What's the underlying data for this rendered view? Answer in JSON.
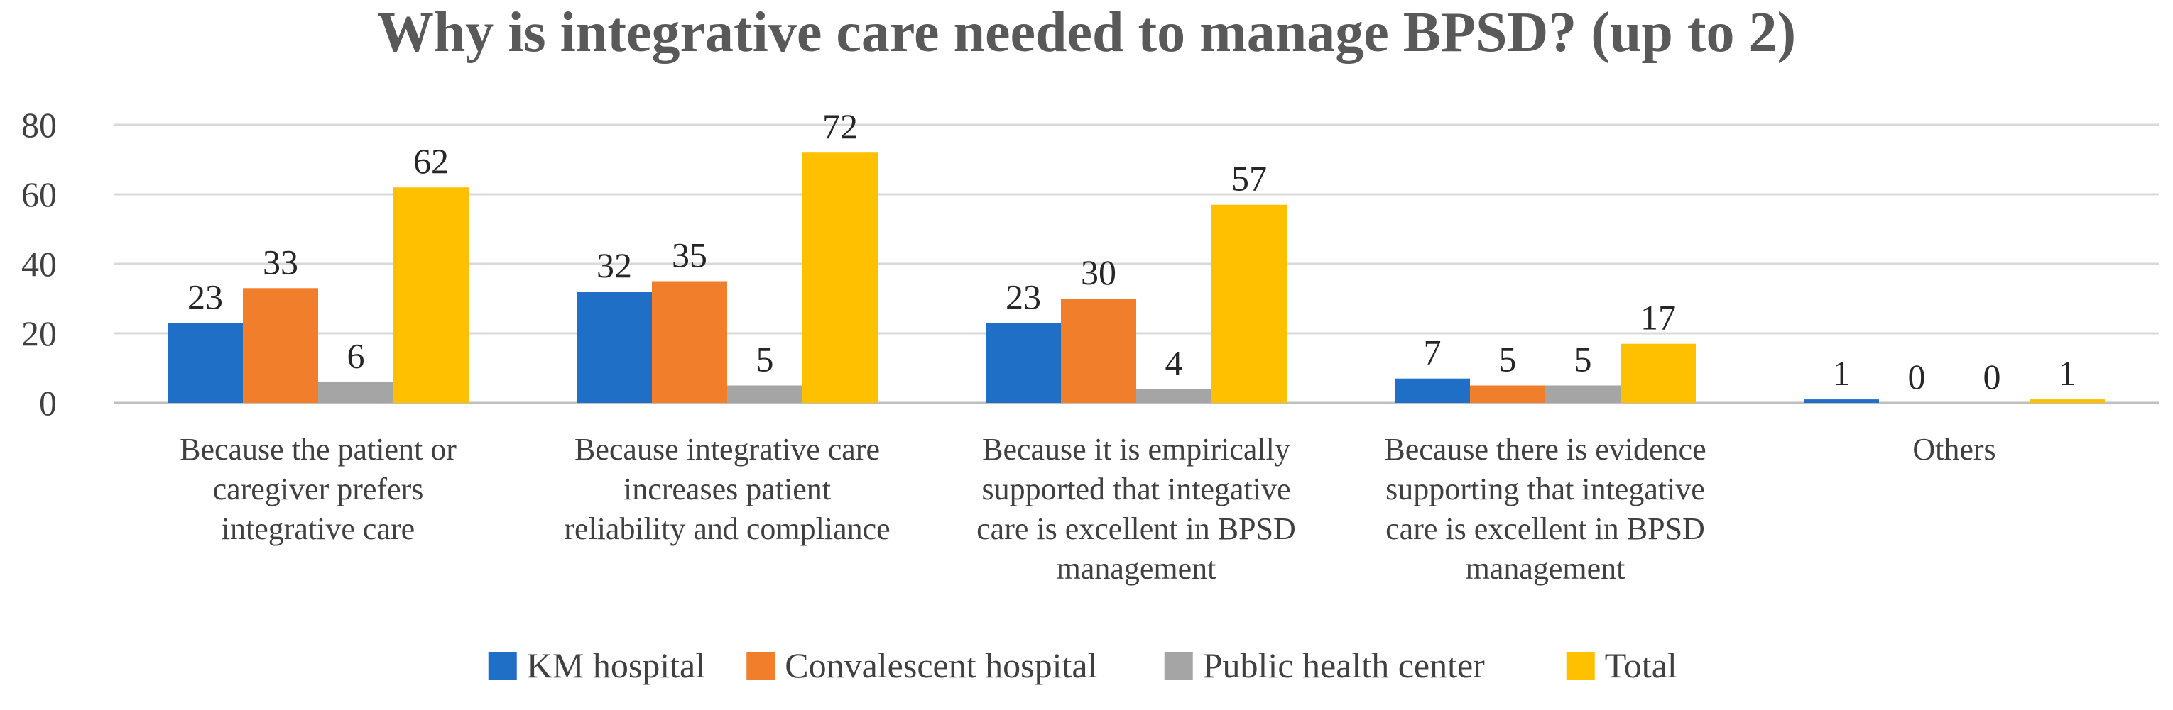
{
  "chart_data": {
    "type": "bar",
    "title": "Why is integrative care needed to manage BPSD? (up to 2)",
    "xlabel": "",
    "ylabel": "",
    "ylim": [
      0,
      80
    ],
    "yticks": [
      "0",
      "20",
      "40",
      "60",
      "80"
    ],
    "grid": true,
    "legend_position": "bottom",
    "categories": [
      "Because the patient or caregiver prefers integrative care",
      "Because integrative care increases patient reliability and compliance",
      "Because it is empirically supported that integative care is excellent in BPSD management",
      "Because there is evidence supporting that integative care is excellent in BPSD management",
      "Others"
    ],
    "category_lines": [
      [
        "Because the patient or",
        "caregiver prefers",
        "integrative care"
      ],
      [
        "Because integrative care",
        "increases patient",
        "reliability and compliance"
      ],
      [
        "Because it is empirically",
        "supported that integative",
        "care is excellent in BPSD",
        "management"
      ],
      [
        "Because there is evidence",
        "supporting that integative",
        "care is excellent in BPSD",
        "management"
      ],
      [
        "Others"
      ]
    ],
    "series": [
      {
        "name": "KM hospital",
        "color": "#1F6FC6",
        "values": [
          23,
          32,
          23,
          7,
          1
        ]
      },
      {
        "name": "Convalescent hospital",
        "color": "#F07E2A",
        "values": [
          33,
          35,
          30,
          5,
          0
        ]
      },
      {
        "name": "Public health center",
        "color": "#A5A5A5",
        "values": [
          6,
          5,
          4,
          5,
          0
        ]
      },
      {
        "name": "Total",
        "color": "#FFC000",
        "values": [
          62,
          72,
          57,
          17,
          1
        ]
      }
    ]
  }
}
